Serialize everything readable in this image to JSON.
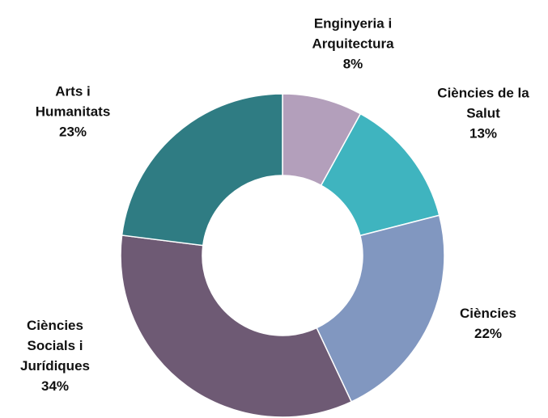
{
  "chart_data": {
    "type": "donut",
    "categories": [
      "Enginyeria i Arquitectura",
      "Ciències de la Salut",
      "Ciències",
      "Ciències Socials i Jurídiques",
      "Arts i Humanitats"
    ],
    "values": [
      8,
      13,
      22,
      34,
      23
    ],
    "value_labels": [
      "8%",
      "13%",
      "22%",
      "34%",
      "23%"
    ],
    "colors": [
      "#b39fbb",
      "#3fb4bf",
      "#8197c0",
      "#6e5a74",
      "#2f7c83"
    ]
  }
}
